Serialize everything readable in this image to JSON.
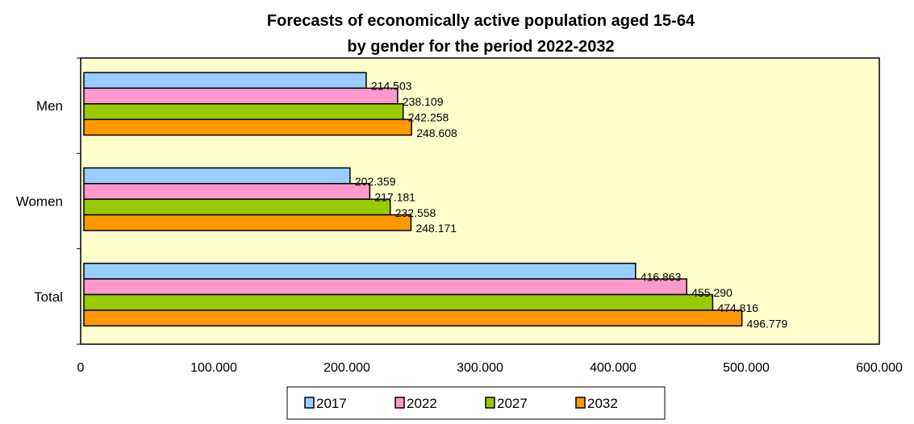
{
  "chart_data": {
    "type": "bar",
    "orientation": "horizontal",
    "title": [
      "Forecasts of economically active population aged 15-64",
      "by gender for the period 2022-2032"
    ],
    "categories": [
      "Men",
      "Women",
      "Total"
    ],
    "series": [
      {
        "name": "2017",
        "color": "#99ccff",
        "values": [
          214503,
          202359,
          416863
        ],
        "labels": [
          "214.503",
          "202.359",
          "416.863"
        ]
      },
      {
        "name": "2022",
        "color": "#ff99cc",
        "values": [
          238109,
          217181,
          455290
        ],
        "labels": [
          "238.109",
          "217.181",
          "455.290"
        ]
      },
      {
        "name": "2027",
        "color": "#99cc00",
        "values": [
          242258,
          232558,
          474816
        ],
        "labels": [
          "242.258",
          "232.558",
          "474.816"
        ]
      },
      {
        "name": "2032",
        "color": "#ff9900",
        "values": [
          248608,
          248171,
          496779
        ],
        "labels": [
          "248.608",
          "248.171",
          "496.779"
        ]
      }
    ],
    "xlim": [
      0,
      600000
    ],
    "xticks": [
      0,
      100000,
      200000,
      300000,
      400000,
      500000,
      600000
    ],
    "xtick_labels": [
      "0",
      "100.000",
      "200.000",
      "300.000",
      "400.000",
      "500.000",
      "600.000"
    ],
    "plot_background": "#ffffcc",
    "grid": false,
    "legend_position": "bottom"
  }
}
